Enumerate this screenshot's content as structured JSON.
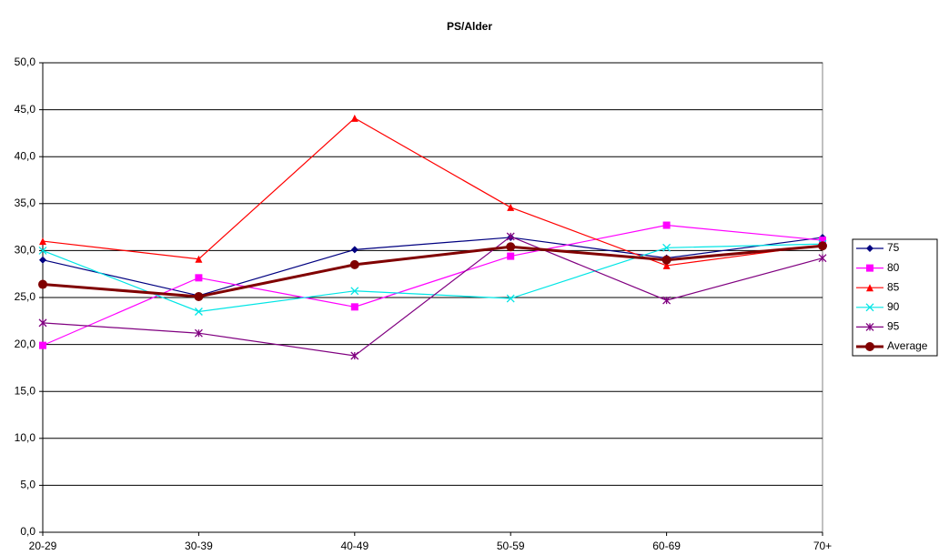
{
  "chart_data": {
    "type": "line",
    "title": "PS/Alder",
    "categories": [
      "20-29",
      "30-39",
      "40-49",
      "50-59",
      "60-69",
      "70+"
    ],
    "series": [
      {
        "name": "75",
        "color": "#000080",
        "values": [
          29.0,
          25.2,
          30.1,
          31.4,
          29.2,
          31.4
        ]
      },
      {
        "name": "80",
        "color": "#ff00ff",
        "values": [
          19.9,
          27.1,
          24.0,
          29.4,
          32.7,
          31.1
        ]
      },
      {
        "name": "85",
        "color": "#ff0000",
        "values": [
          31.0,
          29.1,
          44.1,
          34.6,
          28.4,
          30.6
        ]
      },
      {
        "name": "90",
        "color": "#00e5e5",
        "values": [
          30.0,
          23.5,
          25.7,
          24.9,
          30.3,
          30.7
        ]
      },
      {
        "name": "95",
        "color": "#800080",
        "values": [
          22.3,
          21.2,
          18.8,
          31.5,
          24.7,
          29.2
        ]
      },
      {
        "name": "Average",
        "color": "#800000",
        "values": [
          26.4,
          25.1,
          28.5,
          30.4,
          29.0,
          30.5
        ]
      }
    ],
    "ylim": [
      0,
      50
    ],
    "yticks": [
      {
        "value": 0,
        "label": "0,0"
      },
      {
        "value": 5,
        "label": "5,0"
      },
      {
        "value": 10,
        "label": "10,0"
      },
      {
        "value": 15,
        "label": "15,0"
      },
      {
        "value": 20,
        "label": "20,0"
      },
      {
        "value": 25,
        "label": "25,0"
      },
      {
        "value": 30,
        "label": "30,0"
      },
      {
        "value": 35,
        "label": "35,0"
      },
      {
        "value": 40,
        "label": "40,0"
      },
      {
        "value": 45,
        "label": "45,0"
      },
      {
        "value": 50,
        "label": "50,0"
      }
    ],
    "grid": true,
    "legend": "right"
  }
}
